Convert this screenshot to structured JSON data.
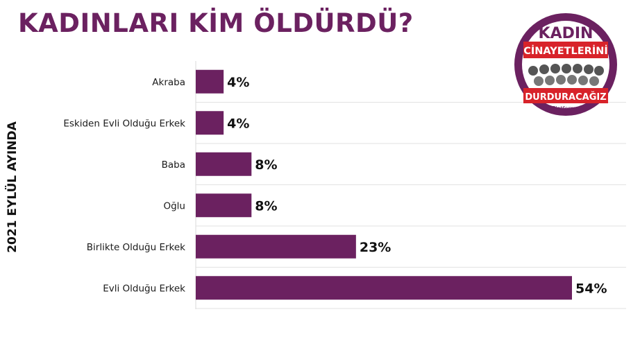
{
  "title": "KADINLARI KİM ÖLDÜRDÜ?",
  "side_label": "2021 EYLÜL AYINDA",
  "logo": {
    "line1": "KADIN",
    "line2": "CİNAYETLERİNİ",
    "line3": "DURDURACAĞIZ",
    "line4": "Platformu"
  },
  "colors": {
    "bar": "#6b2160",
    "title": "#6b2160",
    "logo_ring": "#6b2160",
    "logo_banner": "#d8232a"
  },
  "chart_data": {
    "type": "bar",
    "orientation": "horizontal",
    "categories": [
      "Akraba",
      "Eskiden Evli Olduğu Erkek",
      "Baba",
      "Oğlu",
      "Birlikte Olduğu Erkek",
      "Evli Olduğu Erkek"
    ],
    "values": [
      4,
      4,
      8,
      8,
      23,
      54
    ],
    "value_labels": [
      "4%",
      "4%",
      "8%",
      "8%",
      "23%",
      "54%"
    ],
    "unit": "%",
    "xlim": [
      0,
      54
    ],
    "grid": true
  }
}
